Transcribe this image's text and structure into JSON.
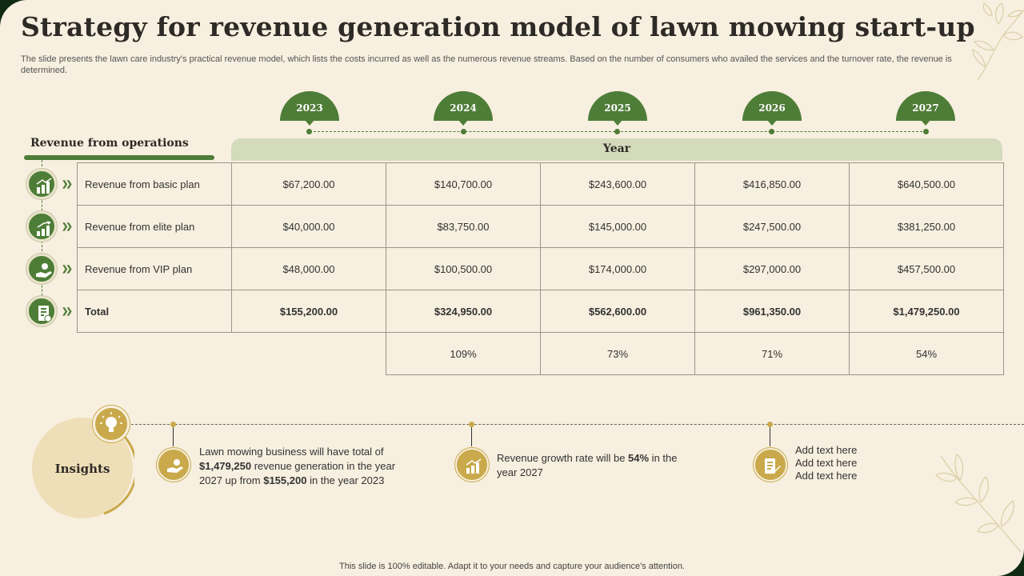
{
  "title": "Strategy for revenue generation model of lawn mowing start-up",
  "subtitle": "The slide presents the lawn care industry's practical revenue model, which lists the costs incurred as well as the numerous revenue streams. Based on the number of consumers who availed the services and the turnover rate, the revenue is determined.",
  "years": [
    "2023",
    "2024",
    "2025",
    "2026",
    "2027"
  ],
  "ops_label": "Revenue from operations",
  "year_header": "Year",
  "rows": [
    {
      "label": "Revenue from basic plan",
      "values": [
        "$67,200.00",
        "$140,700.00",
        "$243,600.00",
        "$416,850.00",
        "$640,500.00"
      ],
      "icon": "money-chart-icon"
    },
    {
      "label": "Revenue from elite plan",
      "values": [
        "$40,000.00",
        "$83,750.00",
        "$145,000.00",
        "$247,500.00",
        "$381,250.00"
      ],
      "icon": "growth-bars-icon"
    },
    {
      "label": "Revenue from VIP plan",
      "values": [
        "$48,000.00",
        "$100,500.00",
        "$174,000.00",
        "$297,000.00",
        "$457,500.00"
      ],
      "icon": "hand-money-icon"
    },
    {
      "label": "Total",
      "values": [
        "$155,200.00",
        "$324,950.00",
        "$562,600.00",
        "$961,350.00",
        "$1,479,250.00"
      ],
      "icon": "report-icon"
    }
  ],
  "growth": [
    "109%",
    "73%",
    "71%",
    "54%"
  ],
  "insights": {
    "label": "Insights",
    "item1": {
      "line1": "Lawn mowing business will have total of",
      "bold1": "$1,479,250",
      "mid": " revenue generation in the year 2027 up from ",
      "bold2": "$155,200",
      "end": " in the year 2023"
    },
    "item2": {
      "pre": "Revenue growth rate will be ",
      "bold": "54%",
      "post": " in the year 2027"
    },
    "item3": [
      "Add text here",
      "Add text here",
      "Add text here"
    ]
  },
  "footer": "This slide is 100% editable. Adapt it to your needs and capture your audience's attention.",
  "colors": {
    "green": "#4e7d37",
    "gold": "#c9a94b",
    "background": "#f7efdf",
    "frame": "#0f2a12"
  }
}
